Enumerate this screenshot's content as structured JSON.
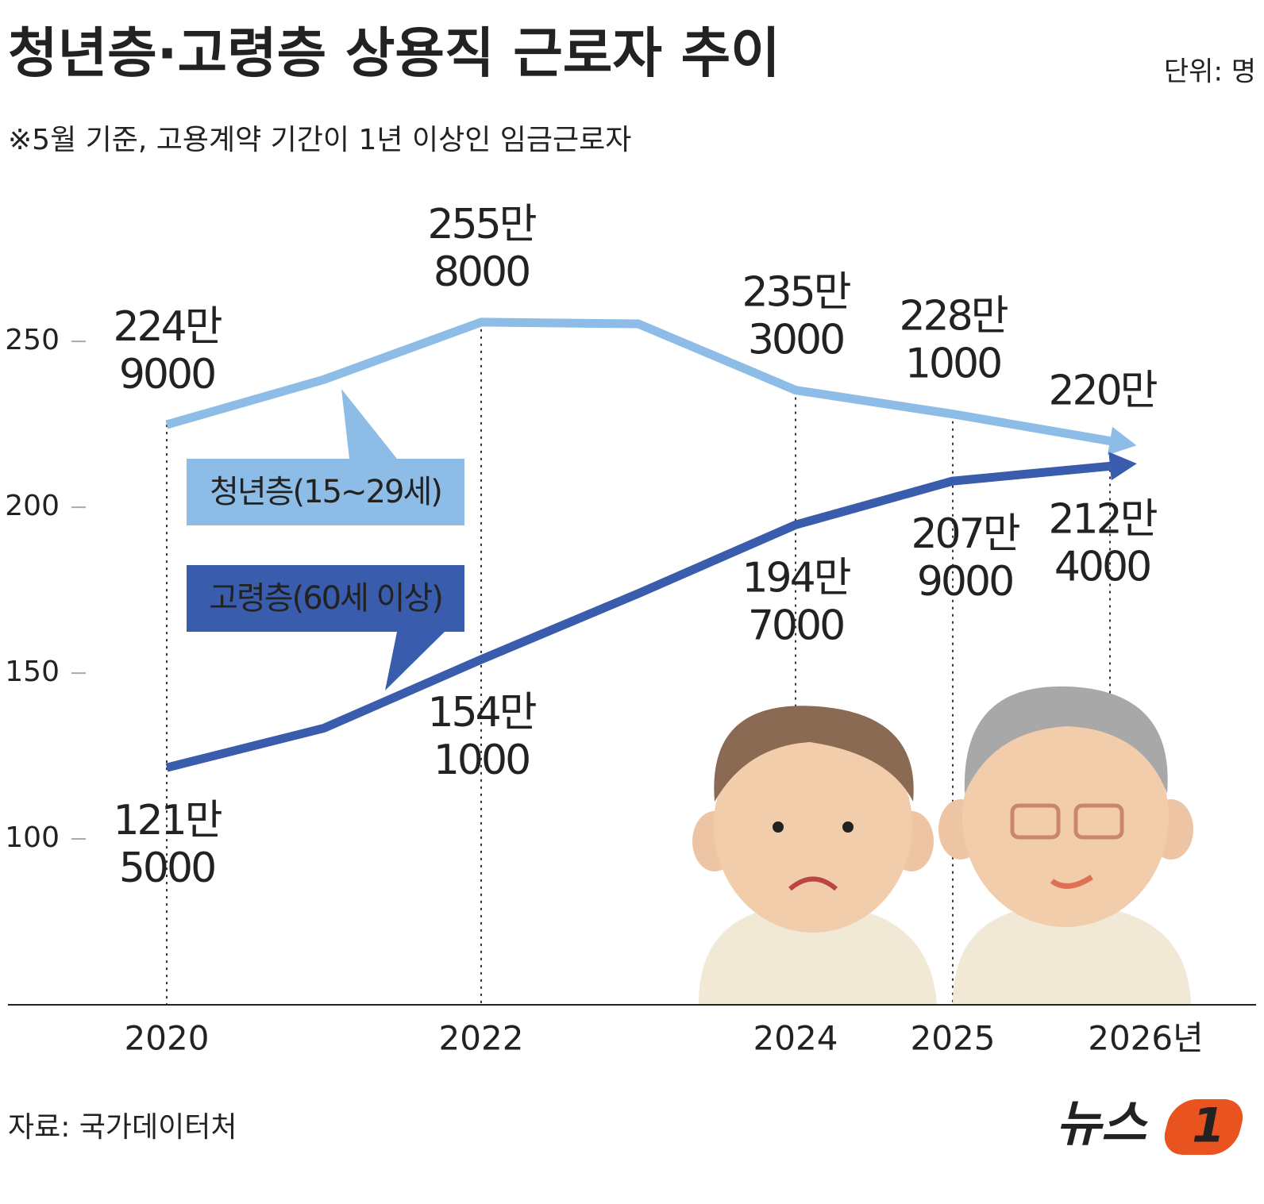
{
  "chart_data": {
    "type": "line",
    "title": "청년층·고령층 상용직 근로자 추이",
    "unit": "단위: 명",
    "subtitle": "※5월 기준, 고용계약 기간이 1년 이상인 임금근로자",
    "source": "자료: 국가데이터처",
    "logo": [
      "뉴스",
      "1"
    ],
    "categories": [
      "2020",
      null,
      "2022",
      null,
      "2024",
      "2025",
      "2026년"
    ],
    "ylim": [
      50,
      290
    ],
    "yticks": [
      100,
      150,
      200,
      250
    ],
    "series": [
      {
        "name": "청년층(15~29세)",
        "color": "#8dbde6",
        "values": [
          224.9,
          238.5,
          255.8,
          255.3,
          235.3,
          228.1,
          220.0
        ],
        "value_labels": [
          "224만\n9000",
          null,
          "255만\n8000",
          null,
          "235만\n3000",
          "228만\n1000",
          "220만"
        ]
      },
      {
        "name": "고령층(60세 이상)",
        "color": "#3a5cad",
        "values": [
          121.5,
          133.4,
          154.1,
          174.0,
          194.7,
          207.9,
          212.4
        ],
        "value_labels": [
          "121만\n5000",
          null,
          "154만\n1000",
          null,
          "194만\n7000",
          "207만\n9000",
          "212만\n4000"
        ]
      }
    ]
  }
}
